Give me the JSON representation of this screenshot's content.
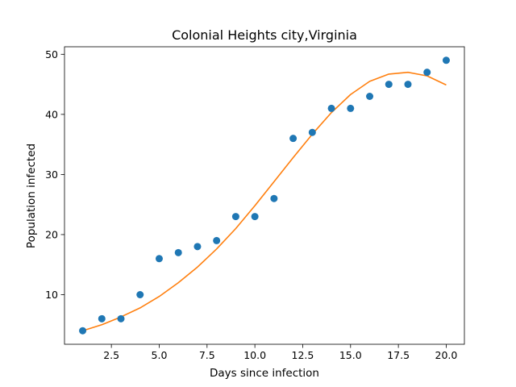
{
  "chart_data": {
    "type": "scatter",
    "title": "Colonial Heights city,Virginia",
    "xlabel": "Days since infection",
    "ylabel": "Population infected",
    "xlim": [
      0.05,
      20.95
    ],
    "ylim": [
      1.75,
      51.25
    ],
    "xticks": [
      2.5,
      5.0,
      7.5,
      10.0,
      12.5,
      15.0,
      17.5,
      20.0
    ],
    "xtick_labels": [
      "2.5",
      "5.0",
      "7.5",
      "10.0",
      "12.5",
      "15.0",
      "17.5",
      "20.0"
    ],
    "yticks": [
      10,
      20,
      30,
      40,
      50
    ],
    "ytick_labels": [
      "10",
      "20",
      "30",
      "40",
      "50"
    ],
    "grid": false,
    "series": [
      {
        "kind": "scatter",
        "color": "#1f77b4",
        "x": [
          1,
          2,
          3,
          4,
          5,
          6,
          7,
          8,
          9,
          10,
          11,
          12,
          13,
          14,
          15,
          16,
          17,
          18,
          19,
          20
        ],
        "y": [
          4,
          6,
          6,
          10,
          16,
          17,
          18,
          19,
          23,
          23,
          26,
          36,
          37,
          41,
          41,
          43,
          45,
          45,
          47,
          49
        ]
      },
      {
        "kind": "line",
        "color": "#ff7f0e",
        "x": [
          1,
          2,
          3,
          4,
          5,
          6,
          7,
          8,
          9,
          10,
          11,
          12,
          13,
          14,
          15,
          16,
          17,
          18,
          19,
          20
        ],
        "y": [
          4.0,
          5.0,
          6.3,
          7.8,
          9.7,
          12.0,
          14.6,
          17.6,
          21.0,
          24.8,
          28.8,
          32.8,
          36.7,
          40.3,
          43.3,
          45.5,
          46.7,
          47.0,
          46.4,
          44.9
        ]
      }
    ]
  }
}
